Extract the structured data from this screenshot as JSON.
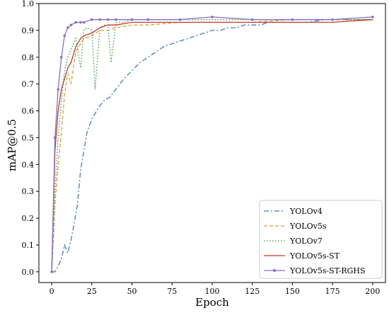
{
  "chart_data": {
    "type": "line",
    "xlabel": "Epoch",
    "ylabel": "mAP@0.5",
    "xlim": [
      -8,
      208
    ],
    "ylim": [
      -0.04,
      1.0
    ],
    "xticks": [
      0,
      25,
      50,
      75,
      100,
      125,
      150,
      175,
      200
    ],
    "yticks": [
      0.0,
      0.1,
      0.2,
      0.3,
      0.4,
      0.5,
      0.6,
      0.7,
      0.8,
      0.9,
      1.0
    ],
    "xtick_labels": [
      "0",
      "25",
      "50",
      "75",
      "100",
      "125",
      "150",
      "175",
      "200"
    ],
    "ytick_labels": [
      "0.0",
      "0.1",
      "0.2",
      "0.3",
      "0.4",
      "0.5",
      "0.6",
      "0.7",
      "0.8",
      "0.9",
      "1.0"
    ],
    "grid": false,
    "legend_position": "lower-right",
    "series": [
      {
        "name": "YOLOv4",
        "color": "#4a7bb7",
        "style": "dashdot",
        "x": [
          0,
          2,
          4,
          6,
          8,
          10,
          12,
          14,
          16,
          18,
          20,
          22,
          25,
          28,
          30,
          33,
          36,
          40,
          45,
          50,
          55,
          60,
          65,
          70,
          75,
          80,
          85,
          90,
          95,
          100,
          105,
          110,
          115,
          120,
          125,
          130,
          135,
          140,
          145,
          150,
          160,
          170,
          180,
          190,
          200
        ],
        "y": [
          0.0,
          0.0,
          0.02,
          0.05,
          0.1,
          0.07,
          0.12,
          0.18,
          0.25,
          0.38,
          0.45,
          0.52,
          0.57,
          0.6,
          0.62,
          0.64,
          0.65,
          0.68,
          0.72,
          0.75,
          0.78,
          0.8,
          0.82,
          0.84,
          0.85,
          0.86,
          0.87,
          0.88,
          0.89,
          0.9,
          0.9,
          0.91,
          0.91,
          0.92,
          0.92,
          0.92,
          0.93,
          0.93,
          0.93,
          0.93,
          0.93,
          0.94,
          0.94,
          0.94,
          0.94
        ]
      },
      {
        "name": "YOLOv5s",
        "color": "#d9a23a",
        "style": "dashed",
        "x": [
          0,
          2,
          4,
          6,
          8,
          10,
          12,
          15,
          18,
          20,
          25,
          30,
          35,
          40,
          50,
          60,
          80,
          100,
          125,
          150,
          175,
          200
        ],
        "y": [
          0.0,
          0.25,
          0.4,
          0.52,
          0.66,
          0.74,
          0.7,
          0.82,
          0.85,
          0.87,
          0.88,
          0.9,
          0.9,
          0.91,
          0.92,
          0.92,
          0.93,
          0.93,
          0.93,
          0.94,
          0.94,
          0.94
        ]
      },
      {
        "name": "YOLOv7",
        "color": "#3a9a45",
        "style": "dotted",
        "x": [
          0,
          2,
          4,
          6,
          8,
          10,
          12,
          15,
          18,
          20,
          22,
          25,
          27,
          30,
          33,
          35,
          37,
          40,
          45,
          50,
          60,
          80,
          100,
          125,
          150,
          175,
          200
        ],
        "y": [
          0.0,
          0.3,
          0.5,
          0.64,
          0.75,
          0.8,
          0.83,
          0.87,
          0.76,
          0.9,
          0.91,
          0.9,
          0.68,
          0.91,
          0.92,
          0.92,
          0.78,
          0.93,
          0.93,
          0.94,
          0.94,
          0.94,
          0.94,
          0.94,
          0.94,
          0.94,
          0.94
        ]
      },
      {
        "name": "YOLOv5s-ST",
        "color": "#c23a2e",
        "style": "solid",
        "x": [
          0,
          2,
          4,
          6,
          8,
          10,
          12,
          15,
          18,
          20,
          25,
          30,
          35,
          40,
          50,
          60,
          80,
          100,
          125,
          150,
          175,
          200
        ],
        "y": [
          0.0,
          0.45,
          0.6,
          0.68,
          0.72,
          0.76,
          0.78,
          0.84,
          0.87,
          0.88,
          0.89,
          0.91,
          0.92,
          0.92,
          0.93,
          0.93,
          0.93,
          0.93,
          0.93,
          0.93,
          0.93,
          0.94
        ]
      },
      {
        "name": "YOLOv5s-ST-RGHS",
        "color": "#8a6fc2",
        "style": "solid-marker",
        "x": [
          0,
          2,
          4,
          6,
          8,
          10,
          12,
          15,
          18,
          20,
          25,
          30,
          35,
          40,
          50,
          60,
          80,
          100,
          125,
          150,
          175,
          200
        ],
        "y": [
          0.0,
          0.5,
          0.68,
          0.8,
          0.88,
          0.91,
          0.92,
          0.93,
          0.93,
          0.93,
          0.94,
          0.94,
          0.94,
          0.94,
          0.94,
          0.94,
          0.94,
          0.95,
          0.94,
          0.94,
          0.94,
          0.95
        ]
      }
    ]
  }
}
